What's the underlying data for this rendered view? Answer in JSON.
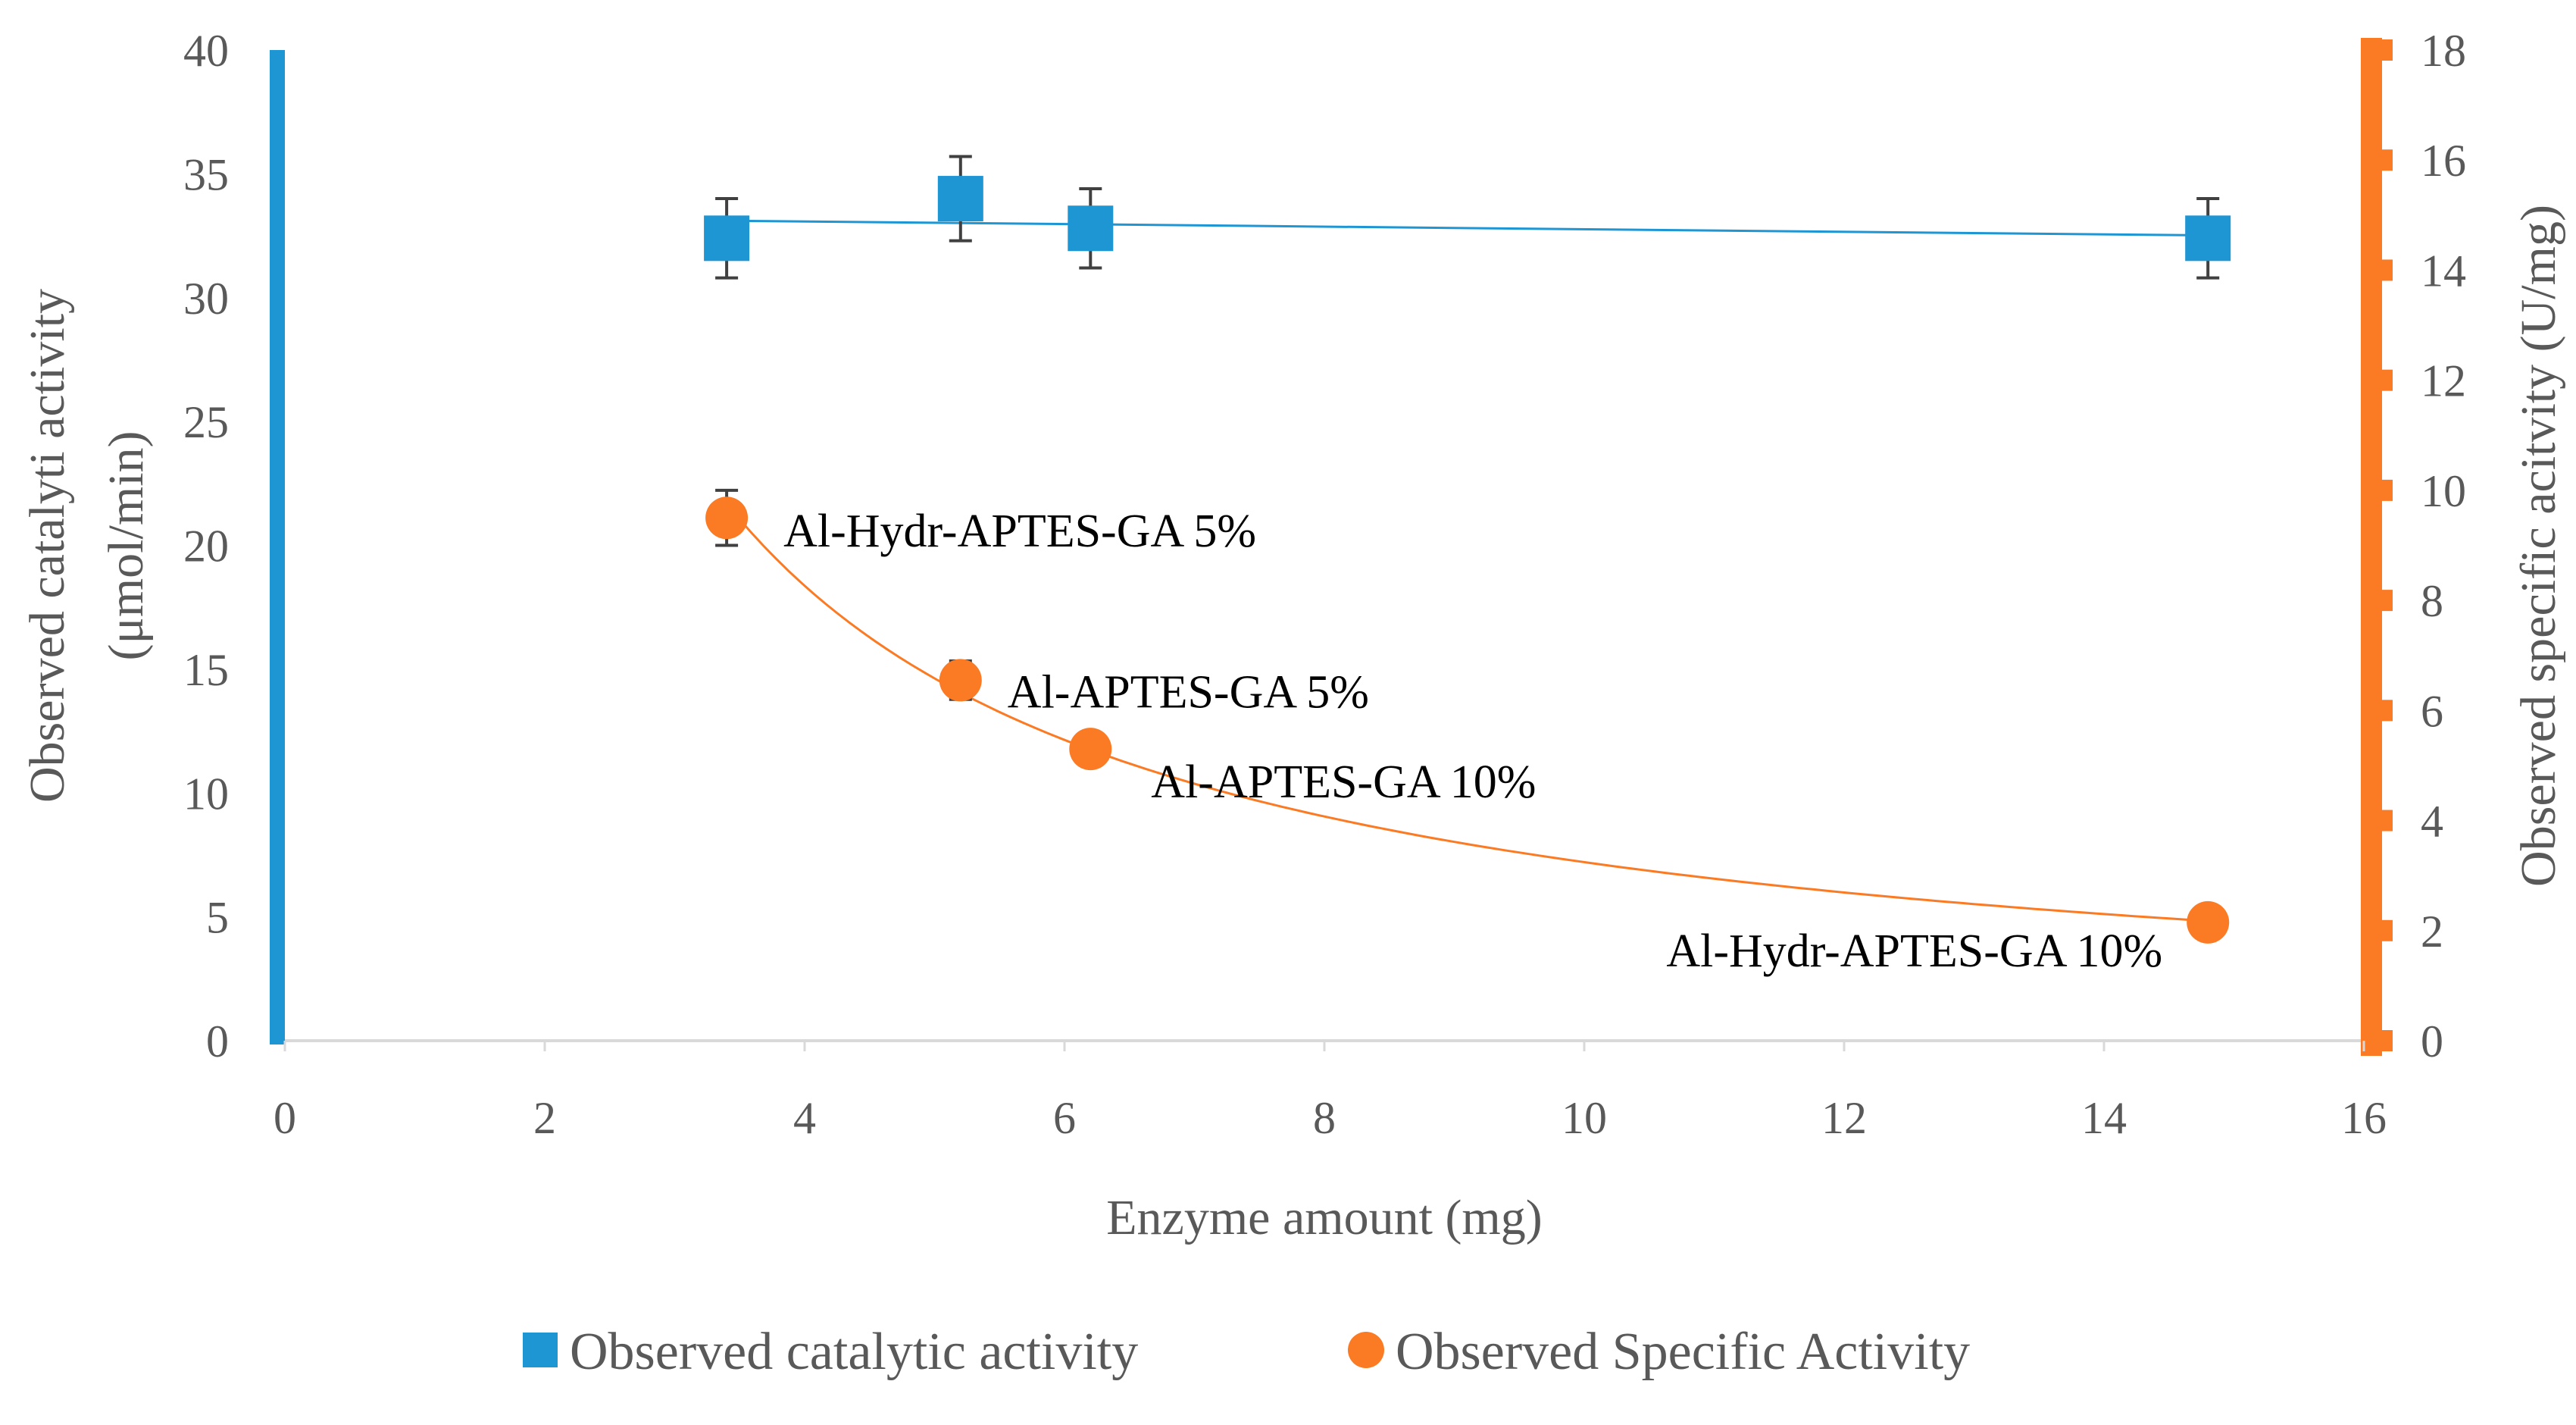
{
  "chart_data": {
    "type": "scatter",
    "title": "",
    "xlabel": "Enzyme amount (mg)",
    "ylabel_left": [
      "Observed catalyti activity",
      "(μmol/min)"
    ],
    "ylabel_right": "Observed specific acitvity (U/mg)",
    "xlim": [
      0,
      16
    ],
    "ylim_left": [
      0,
      40
    ],
    "ylim_right": [
      0,
      18
    ],
    "x_ticks": [
      "0",
      "2",
      "4",
      "6",
      "8",
      "10",
      "12",
      "14",
      "16"
    ],
    "y_left_ticks": [
      "0",
      "5",
      "10",
      "15",
      "20",
      "25",
      "30",
      "35",
      "40"
    ],
    "y_right_ticks": [
      "0",
      "2",
      "4",
      "6",
      "8",
      "10",
      "12",
      "14",
      "16",
      "18"
    ],
    "grid": false,
    "legend_position": "bottom",
    "colors": {
      "catalytic": "#1f96d4",
      "specific": "#fb7a24",
      "axis_line": "#d9d9d9",
      "error_bar": "#404040"
    },
    "series": [
      {
        "name": "Observed catalytic activity",
        "axis": "left",
        "marker": "square",
        "points": [
          {
            "x": 3.4,
            "y": 32.4,
            "err": 1.6
          },
          {
            "x": 5.2,
            "y": 34.0,
            "err": 1.7
          },
          {
            "x": 6.2,
            "y": 32.8,
            "err": 1.6
          },
          {
            "x": 14.8,
            "y": 32.4,
            "err": 1.6
          }
        ],
        "trendline": "linear"
      },
      {
        "name": "Observed Specific Activity",
        "axis": "right",
        "marker": "circle",
        "points": [
          {
            "x": 3.4,
            "y": 9.5,
            "err": 0.5,
            "label": "Al-Hydr-APTES-GA 5%"
          },
          {
            "x": 5.2,
            "y": 6.55,
            "err": 0.35,
            "label": "Al-APTES-GA 5%"
          },
          {
            "x": 6.2,
            "y": 5.3,
            "err": 0.0,
            "label": "Al-APTES-GA 10%"
          },
          {
            "x": 14.8,
            "y": 2.15,
            "err": 0.0,
            "label": "Al-Hydr-APTES-GA 10%"
          }
        ],
        "trendline": "power"
      }
    ]
  }
}
